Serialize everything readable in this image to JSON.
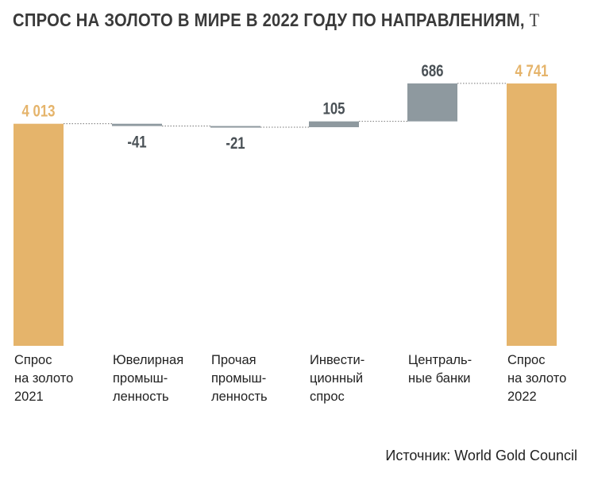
{
  "title": "СПРОС НА ЗОЛОТО В МИРЕ В 2022 ГОДУ ПО НАПРАВЛЕНИЯМ,",
  "title_unit": "Т",
  "source": "Источник: World Gold Council",
  "colors": {
    "total": "#E5B46B",
    "change": "#8E999F",
    "total_label": "#E5B46B",
    "change_label": "#4A5156",
    "connector": "#777777"
  },
  "chart_data": {
    "type": "bar",
    "subtype": "waterfall",
    "unit": "т",
    "categories": [
      "Спрос\nна золото\n2021",
      "Ювелирная\nпромыш-\nленность",
      "Прочая\nпромыш-\nленность",
      "Инвести-\nционный\nспрос",
      "Централь-\nные банки",
      "Спрос\nна золото\n2022"
    ],
    "values": [
      4013,
      -41,
      -21,
      105,
      686,
      4741
    ],
    "kinds": [
      "total",
      "delta",
      "delta",
      "delta",
      "delta",
      "total"
    ],
    "labels": [
      "4 013",
      "-41",
      "-21",
      "105",
      "686",
      "4 741"
    ],
    "ylim": [
      0,
      4741
    ]
  }
}
